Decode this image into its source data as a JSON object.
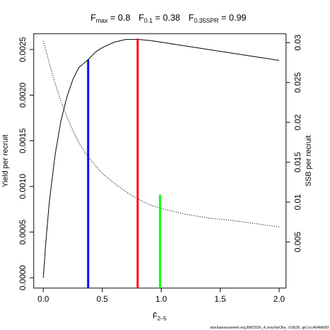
{
  "title": {
    "fmax_symbol": "F",
    "fmax_sub": "max",
    "fmax_value": " = 0.8",
    "f01_symbol": "F",
    "f01_sub": "0.1",
    "f01_value": " = 0.38",
    "fspr_symbol": "F",
    "fspr_sub": "0.35SPR",
    "fspr_value": " = 0.99"
  },
  "footer": "stockassessment.org,BW2026_4_keyVarObs, r19526, git:1cc464b806f",
  "chart_data": {
    "type": "line",
    "x_axis": {
      "label_symbol": "F̄",
      "label_sub": "2–5",
      "range": [
        0,
        2
      ],
      "ticks": [
        0,
        0.5,
        1,
        1.5,
        2
      ],
      "tick_labels": [
        "0.0",
        "0.5",
        "1.0",
        "1.5",
        "2.0"
      ]
    },
    "y_left": {
      "label": "Yield per recruit",
      "range": [
        0,
        0.0026
      ],
      "ticks": [
        0,
        0.0005,
        0.001,
        0.0015,
        0.002,
        0.0025
      ],
      "tick_labels": [
        "0.0000",
        "0.0005",
        "0.0010",
        "0.0015",
        "0.0020",
        "0.0025"
      ]
    },
    "y_right": {
      "label": "SSB per recruit",
      "range": [
        0.0005,
        0.031
      ],
      "ticks": [
        0.005,
        0.01,
        0.015,
        0.02,
        0.025,
        0.03
      ],
      "tick_labels": [
        "0.005",
        "0.01",
        "0.015",
        "0.02",
        "0.025",
        "0.03"
      ]
    },
    "series": [
      {
        "axis": "left",
        "style": "solid",
        "color": "#000000",
        "x": [
          0,
          0.02,
          0.05,
          0.1,
          0.15,
          0.2,
          0.25,
          0.3,
          0.38,
          0.45,
          0.5,
          0.6,
          0.7,
          0.8,
          0.9,
          1.0,
          1.2,
          1.4,
          1.6,
          1.8,
          2.0
        ],
        "y": [
          0.0,
          0.00036,
          0.00082,
          0.00135,
          0.00172,
          0.00198,
          0.00217,
          0.0023,
          0.00239,
          0.00248,
          0.00252,
          0.00258,
          0.00261,
          0.00261,
          0.0026,
          0.00258,
          0.00254,
          0.0025,
          0.00246,
          0.00242,
          0.00238
        ]
      },
      {
        "axis": "right",
        "style": "dotted",
        "color": "#000000",
        "x": [
          0,
          0.05,
          0.1,
          0.15,
          0.2,
          0.25,
          0.3,
          0.35,
          0.4,
          0.5,
          0.6,
          0.7,
          0.8,
          0.9,
          1.0,
          1.2,
          1.4,
          1.6,
          1.8,
          2.0
        ],
        "y": [
          0.0302,
          0.0275,
          0.0249,
          0.0226,
          0.0207,
          0.019,
          0.0175,
          0.0163,
          0.0153,
          0.0136,
          0.0124,
          0.0113,
          0.0104,
          0.0097,
          0.0092,
          0.0085,
          0.008,
          0.0077,
          0.0073,
          0.0069
        ]
      }
    ],
    "reference_lines": [
      {
        "name": "F0.1",
        "x": 0.38,
        "y_top": 0.00239,
        "color": "#0000ff"
      },
      {
        "name": "Fmax",
        "x": 0.8,
        "y_top": 0.00262,
        "color": "#ff0000"
      },
      {
        "name": "F0.35SPR",
        "x": 0.99,
        "y_top": 0.00091,
        "color": "#00ff00"
      }
    ]
  }
}
